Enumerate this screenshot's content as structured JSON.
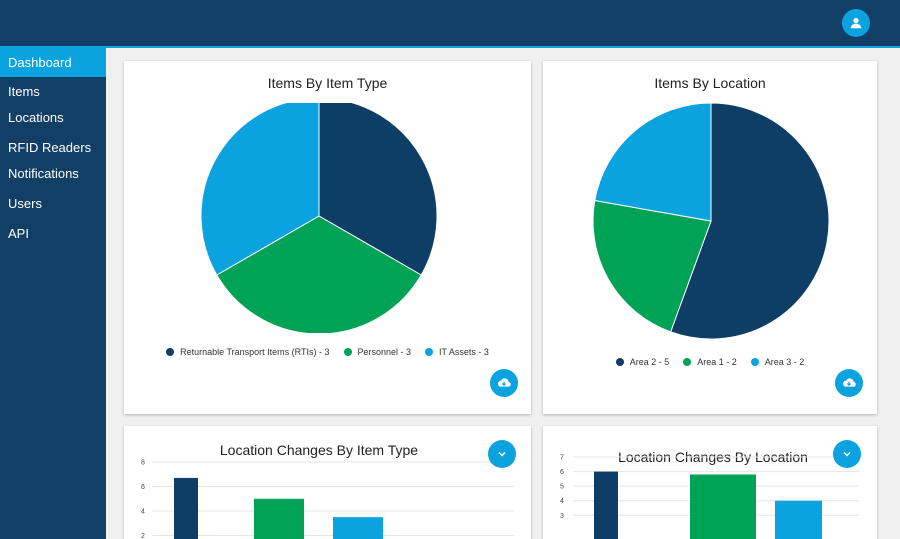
{
  "colors": {
    "navy": "#123f66",
    "dark_blue": "#0e3e66",
    "green": "#00a356",
    "light_blue": "#0aa3e0"
  },
  "user": {
    "icon": "person-icon"
  },
  "sidebar": {
    "items": [
      {
        "label": "Dashboard",
        "active": true
      },
      {
        "label": "Items"
      },
      {
        "label": "Locations"
      },
      {
        "label": "RFID Readers"
      },
      {
        "label": "Notifications"
      },
      {
        "label": "Users"
      },
      {
        "label": "API"
      }
    ]
  },
  "cards": {
    "items_by_type": {
      "title": "Items By Item Type",
      "legend": [
        "Returnable Transport Items (RTIs) - 3",
        "Personnel - 3",
        "IT Assets - 3"
      ],
      "download_icon": "cloud-download-icon"
    },
    "items_by_location": {
      "title": "Items By Location",
      "legend": [
        "Area 2 - 5",
        "Area 1 - 2",
        "Area 3 - 2"
      ],
      "download_icon": "cloud-download-icon"
    },
    "changes_by_type": {
      "title": "Location Changes By Item Type",
      "expand_icon": "chevron-down-icon"
    },
    "changes_by_location": {
      "title": "Location Changes By Location",
      "expand_icon": "chevron-down-icon"
    }
  },
  "chart_data": [
    {
      "type": "pie",
      "title": "Items By Item Type",
      "categories": [
        "Returnable Transport Items (RTIs)",
        "Personnel",
        "IT Assets"
      ],
      "values": [
        3,
        3,
        3
      ],
      "colors": [
        "#0e3e66",
        "#00a356",
        "#0aa3e0"
      ],
      "legend_placement": "bottom"
    },
    {
      "type": "pie",
      "title": "Items By Location",
      "categories": [
        "Area 2",
        "Area 1",
        "Area 3"
      ],
      "values": [
        5,
        2,
        2
      ],
      "colors": [
        "#0e3e66",
        "#00a356",
        "#0aa3e0"
      ],
      "legend_placement": "bottom"
    },
    {
      "type": "bar",
      "title": "Location Changes By Item Type",
      "values": [
        6.7,
        5.0,
        3.5
      ],
      "colors": [
        "#0e3e66",
        "#00a356",
        "#0aa3e0"
      ],
      "yticks": [
        2,
        4,
        6,
        8
      ],
      "ylim": [
        0,
        8
      ],
      "grid": true
    },
    {
      "type": "bar",
      "title": "Location Changes By Location",
      "values": [
        6.0,
        5.8,
        4.0
      ],
      "colors": [
        "#0e3e66",
        "#00a356",
        "#0aa3e0"
      ],
      "yticks": [
        3,
        4,
        5,
        6,
        7
      ],
      "ylim": [
        0,
        7
      ],
      "grid": true
    }
  ]
}
